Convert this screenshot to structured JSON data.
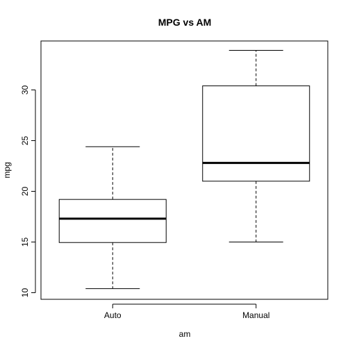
{
  "chart_data": {
    "type": "box",
    "title": "MPG vs AM",
    "xlabel": "am",
    "ylabel": "mpg",
    "categories": [
      "Auto",
      "Manual"
    ],
    "boxes": [
      {
        "name": "Auto",
        "min": 10.4,
        "q1": 14.95,
        "median": 17.3,
        "q3": 19.2,
        "max": 24.4
      },
      {
        "name": "Manual",
        "min": 15.0,
        "q1": 21.0,
        "median": 22.8,
        "q3": 30.4,
        "max": 33.9
      }
    ],
    "ylim": [
      9.5,
      34.5
    ],
    "yticks": [
      10,
      15,
      20,
      25,
      30
    ],
    "grid": false,
    "colors": {
      "box_fill": "#ffffff",
      "stroke": "#000000"
    }
  }
}
